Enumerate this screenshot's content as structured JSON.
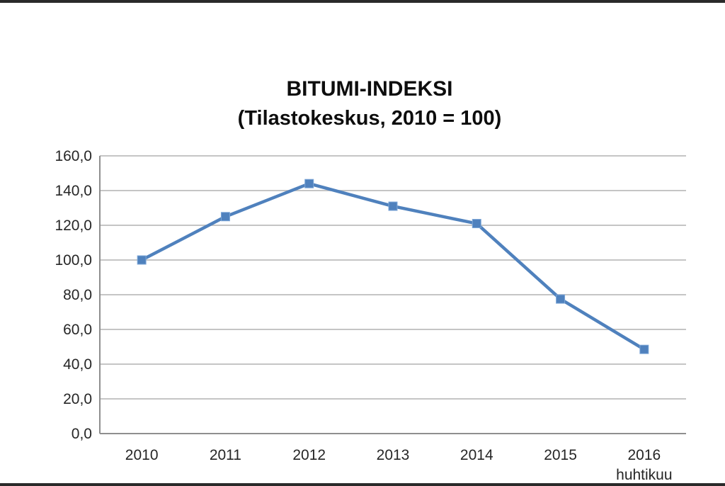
{
  "chart_data": {
    "type": "line",
    "title": "BITUMI-INDEKSI",
    "subtitle": "(Tilastokeskus, 2010 = 100)",
    "categories": [
      "2010",
      "2011",
      "2012",
      "2013",
      "2014",
      "2015",
      "2016"
    ],
    "category_sublabels": [
      "",
      "",
      "",
      "",
      "",
      "",
      "huhtikuu"
    ],
    "series": [
      {
        "name": "Bitumi-indeksi",
        "values": [
          100.0,
          125.0,
          144.0,
          131.0,
          121.0,
          77.5,
          48.5
        ]
      }
    ],
    "xlabel": "",
    "ylabel": "",
    "ylim": [
      0,
      160
    ],
    "ytick_step": 20,
    "ytick_labels": [
      "0,0",
      "20,0",
      "40,0",
      "60,0",
      "80,0",
      "100,0",
      "120,0",
      "140,0",
      "160,0"
    ],
    "grid": "horizontal",
    "legend": "none",
    "marker": "square",
    "colors": {
      "line": "#4F81BD",
      "marker_fill": "#4F81BD",
      "marker_edge": "#7da7d8",
      "gridline": "#bdbdbd",
      "axis": "#8f8f8f",
      "text": "#262626",
      "title_text": "#0d0d0d",
      "page_edge_bar": "#2a2a2a"
    }
  }
}
